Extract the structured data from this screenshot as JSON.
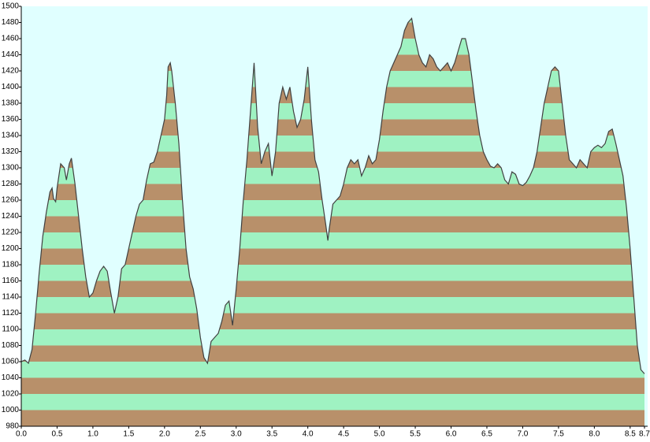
{
  "chart_data": {
    "type": "area",
    "x": [
      0.0,
      0.05,
      0.1,
      0.15,
      0.2,
      0.25,
      0.3,
      0.35,
      0.4,
      0.43,
      0.45,
      0.48,
      0.5,
      0.55,
      0.6,
      0.63,
      0.67,
      0.7,
      0.75,
      0.8,
      0.85,
      0.9,
      0.95,
      1.0,
      1.05,
      1.1,
      1.15,
      1.2,
      1.25,
      1.3,
      1.35,
      1.4,
      1.45,
      1.5,
      1.55,
      1.6,
      1.65,
      1.7,
      1.75,
      1.8,
      1.85,
      1.9,
      1.95,
      2.0,
      2.03,
      2.05,
      2.08,
      2.1,
      2.15,
      2.2,
      2.25,
      2.3,
      2.35,
      2.4,
      2.45,
      2.5,
      2.55,
      2.6,
      2.65,
      2.7,
      2.75,
      2.8,
      2.85,
      2.9,
      2.95,
      3.0,
      3.05,
      3.1,
      3.15,
      3.2,
      3.25,
      3.3,
      3.35,
      3.4,
      3.45,
      3.5,
      3.55,
      3.6,
      3.65,
      3.7,
      3.75,
      3.8,
      3.85,
      3.9,
      3.95,
      4.0,
      4.05,
      4.1,
      4.15,
      4.2,
      4.25,
      4.28,
      4.3,
      4.35,
      4.4,
      4.45,
      4.5,
      4.55,
      4.6,
      4.65,
      4.7,
      4.75,
      4.8,
      4.85,
      4.9,
      4.95,
      5.0,
      5.05,
      5.1,
      5.15,
      5.2,
      5.25,
      5.3,
      5.35,
      5.4,
      5.45,
      5.5,
      5.55,
      5.6,
      5.65,
      5.7,
      5.75,
      5.8,
      5.85,
      5.9,
      5.95,
      6.0,
      6.05,
      6.1,
      6.15,
      6.2,
      6.25,
      6.3,
      6.35,
      6.4,
      6.45,
      6.5,
      6.55,
      6.6,
      6.65,
      6.7,
      6.75,
      6.8,
      6.85,
      6.9,
      6.95,
      7.0,
      7.05,
      7.1,
      7.15,
      7.2,
      7.25,
      7.3,
      7.35,
      7.4,
      7.45,
      7.5,
      7.55,
      7.6,
      7.65,
      7.7,
      7.75,
      7.8,
      7.85,
      7.9,
      7.95,
      8.0,
      8.05,
      8.1,
      8.15,
      8.2,
      8.25,
      8.3,
      8.35,
      8.4,
      8.45,
      8.5,
      8.55,
      8.6,
      8.65,
      8.7
    ],
    "values": [
      1060,
      1062,
      1058,
      1075,
      1120,
      1170,
      1215,
      1245,
      1270,
      1275,
      1262,
      1258,
      1275,
      1305,
      1300,
      1285,
      1305,
      1312,
      1280,
      1240,
      1200,
      1165,
      1140,
      1145,
      1160,
      1172,
      1178,
      1172,
      1145,
      1120,
      1140,
      1175,
      1180,
      1200,
      1220,
      1240,
      1255,
      1260,
      1285,
      1305,
      1307,
      1320,
      1340,
      1360,
      1390,
      1425,
      1430,
      1420,
      1380,
      1330,
      1260,
      1200,
      1165,
      1150,
      1125,
      1090,
      1065,
      1058,
      1085,
      1090,
      1095,
      1110,
      1130,
      1135,
      1105,
      1150,
      1200,
      1260,
      1310,
      1370,
      1430,
      1350,
      1305,
      1320,
      1330,
      1290,
      1320,
      1380,
      1400,
      1385,
      1400,
      1370,
      1350,
      1360,
      1385,
      1425,
      1360,
      1310,
      1295,
      1260,
      1230,
      1210,
      1225,
      1255,
      1260,
      1265,
      1280,
      1300,
      1310,
      1305,
      1310,
      1290,
      1300,
      1315,
      1305,
      1310,
      1335,
      1370,
      1400,
      1420,
      1430,
      1440,
      1450,
      1470,
      1480,
      1485,
      1460,
      1440,
      1430,
      1425,
      1440,
      1435,
      1425,
      1420,
      1425,
      1430,
      1420,
      1430,
      1445,
      1460,
      1460,
      1440,
      1405,
      1370,
      1340,
      1320,
      1310,
      1302,
      1300,
      1305,
      1300,
      1285,
      1280,
      1295,
      1292,
      1280,
      1278,
      1282,
      1290,
      1300,
      1320,
      1350,
      1380,
      1400,
      1420,
      1425,
      1420,
      1380,
      1340,
      1310,
      1305,
      1300,
      1310,
      1305,
      1300,
      1320,
      1325,
      1328,
      1325,
      1330,
      1345,
      1348,
      1330,
      1310,
      1290,
      1250,
      1200,
      1140,
      1080,
      1050,
      1045
    ],
    "xlim": [
      0,
      8.7
    ],
    "ylim": [
      980,
      1500
    ],
    "xticks": [
      {
        "value": 0,
        "label": "0.0"
      },
      0.5,
      {
        "value": 1,
        "label": "1.0"
      },
      1.5,
      {
        "value": 2,
        "label": "2.0"
      },
      2.5,
      {
        "value": 3,
        "label": "3.0"
      },
      3.5,
      {
        "value": 4,
        "label": "4.0"
      },
      4.5,
      {
        "value": 5,
        "label": "5.0"
      },
      5.5,
      {
        "value": 6,
        "label": "6.0"
      },
      6.5,
      {
        "value": 7,
        "label": "7.0"
      },
      7.5,
      {
        "value": 8,
        "label": "8.0"
      },
      8.5,
      8.7
    ],
    "yticks": [
      980,
      1000,
      1020,
      1040,
      1060,
      1080,
      1100,
      1120,
      1140,
      1160,
      1180,
      1200,
      1220,
      1240,
      1260,
      1280,
      1300,
      1320,
      1340,
      1360,
      1380,
      1400,
      1420,
      1440,
      1460,
      1480,
      1500
    ],
    "stripe_colors": [
      "#b8906a",
      "#9ff2c2"
    ],
    "line_color": "#404040",
    "background": "#e0ffff"
  }
}
